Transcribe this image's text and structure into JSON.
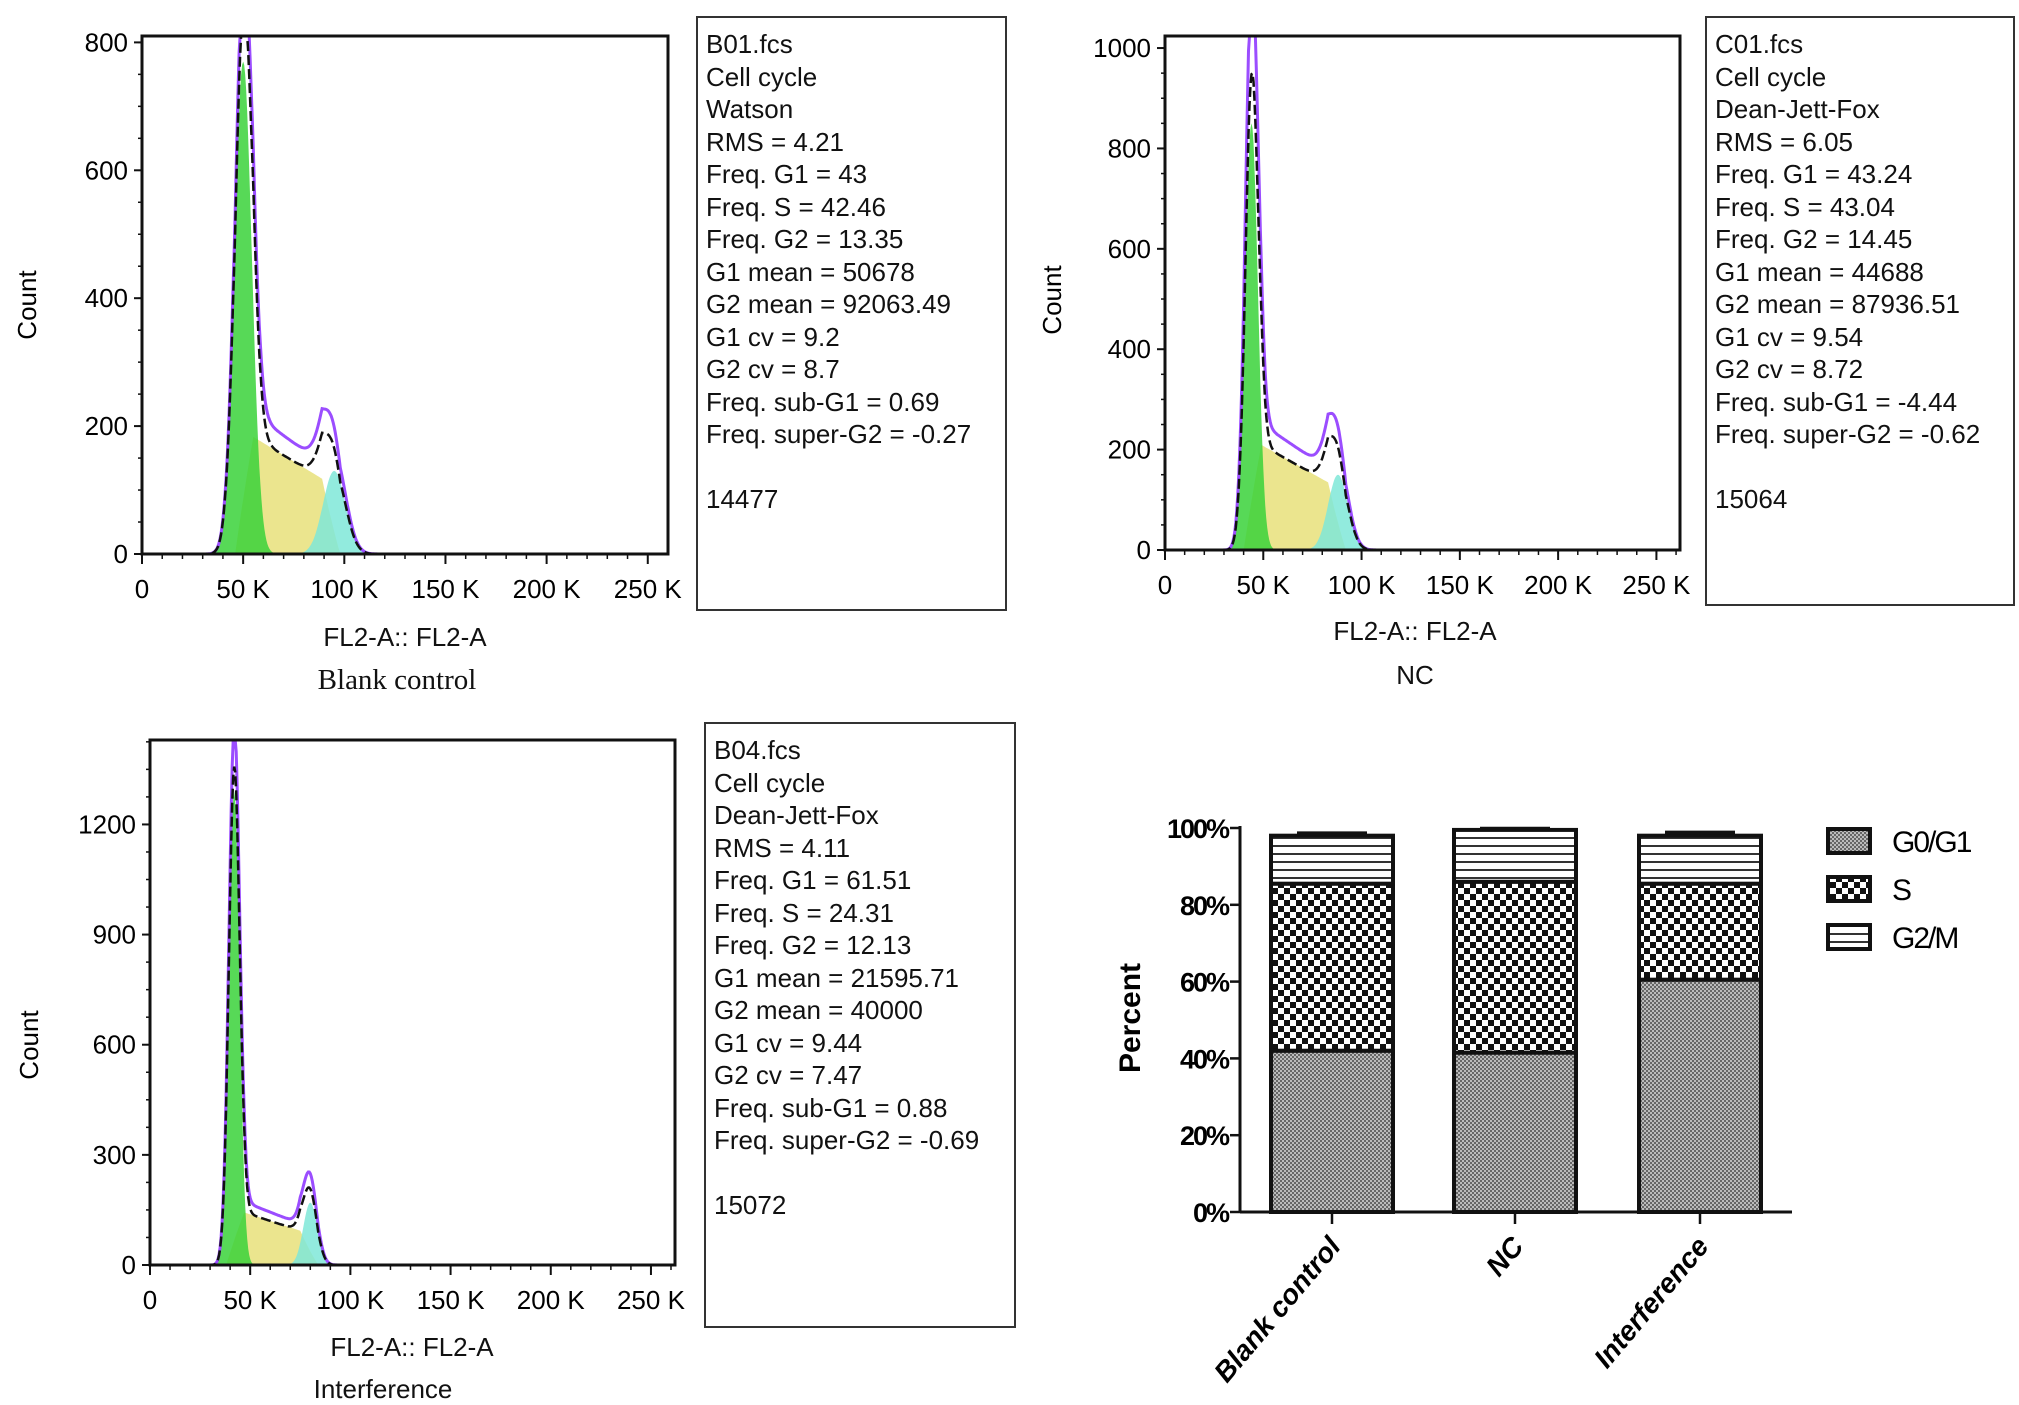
{
  "chart_data": [
    {
      "type": "area",
      "panel": "histogram",
      "title": "Blank control",
      "xlabel": "FL2-A:: FL2-A",
      "ylabel": "Count",
      "xlim": [
        0,
        260000
      ],
      "ylim": [
        0,
        810
      ],
      "xticks": [
        {
          "v": 0,
          "label": "0"
        },
        {
          "v": 50000,
          "label": "50 K"
        },
        {
          "v": 100000,
          "label": "100 K"
        },
        {
          "v": 150000,
          "label": "150 K"
        },
        {
          "v": 200000,
          "label": "200 K"
        },
        {
          "v": 250000,
          "label": "250 K"
        }
      ],
      "yticks": [
        {
          "v": 0,
          "label": "0"
        },
        {
          "v": 200,
          "label": "200"
        },
        {
          "v": 400,
          "label": "400"
        },
        {
          "v": 600,
          "label": "600"
        },
        {
          "v": 800,
          "label": "800"
        }
      ],
      "components": {
        "G1": {
          "peak_x": 50000,
          "peak_y": 770,
          "sd": 4300
        },
        "S": {
          "from_x": 52000,
          "to_x": 92000,
          "level": 140
        },
        "G2": {
          "peak_x": 95000,
          "peak_y": 130,
          "sd": 5500
        },
        "envelope_peak": 815
      },
      "info": [
        "B01.fcs",
        "Cell cycle",
        "Watson",
        "RMS = 4.21",
        "Freq. G1 = 43",
        "Freq. S = 42.46",
        "Freq. G2 = 13.35",
        "G1 mean = 50678",
        "G2 mean = 92063.49",
        "G1 cv = 9.2",
        "G2 cv = 8.7",
        "Freq. sub-G1 = 0.69",
        "Freq. super-G2 = -0.27"
      ],
      "event_count": "14477"
    },
    {
      "type": "area",
      "panel": "histogram",
      "title": "NC",
      "xlabel": "FL2-A:: FL2-A",
      "ylabel": "Count",
      "xlim": [
        0,
        262000
      ],
      "ylim": [
        0,
        1024
      ],
      "xticks": [
        {
          "v": 0,
          "label": "0"
        },
        {
          "v": 50000,
          "label": "50 K"
        },
        {
          "v": 100000,
          "label": "100 K"
        },
        {
          "v": 150000,
          "label": "150 K"
        },
        {
          "v": 200000,
          "label": "200 K"
        },
        {
          "v": 250000,
          "label": "250 K"
        }
      ],
      "yticks": [
        {
          "v": 0,
          "label": "0"
        },
        {
          "v": 200,
          "label": "200"
        },
        {
          "v": 400,
          "label": "400"
        },
        {
          "v": 600,
          "label": "600"
        },
        {
          "v": 800,
          "label": "800"
        },
        {
          "v": 1000,
          "label": "1000"
        }
      ],
      "components": {
        "G1": {
          "peak_x": 44000,
          "peak_y": 850,
          "sd": 3300
        },
        "S": {
          "from_x": 46000,
          "to_x": 86000,
          "level": 160
        },
        "G2": {
          "peak_x": 88000,
          "peak_y": 150,
          "sd": 5000
        },
        "envelope_peak": 1020
      },
      "info": [
        "C01.fcs",
        "Cell cycle",
        "Dean-Jett-Fox",
        "RMS = 6.05",
        "Freq. G1 = 43.24",
        "Freq. S = 43.04",
        "Freq. G2 = 14.45",
        "G1 mean = 44688",
        "G2 mean = 87936.51",
        "G1 cv = 9.54",
        "G2 cv = 8.72",
        "Freq. sub-G1 = -4.44",
        "Freq. super-G2 = -0.62"
      ],
      "event_count": "15064"
    },
    {
      "type": "area",
      "panel": "histogram",
      "title": "Interference",
      "xlabel": "FL2-A:: FL2-A",
      "ylabel": "Count",
      "xlim": [
        0,
        262000
      ],
      "ylim": [
        0,
        1430
      ],
      "xticks": [
        {
          "v": 0,
          "label": "0"
        },
        {
          "v": 50000,
          "label": "50 K"
        },
        {
          "v": 100000,
          "label": "100 K"
        },
        {
          "v": 150000,
          "label": "150 K"
        },
        {
          "v": 200000,
          "label": "200 K"
        },
        {
          "v": 250000,
          "label": "250 K"
        }
      ],
      "yticks": [
        {
          "v": 0,
          "label": "0"
        },
        {
          "v": 300,
          "label": "300"
        },
        {
          "v": 600,
          "label": "600"
        },
        {
          "v": 900,
          "label": "900"
        },
        {
          "v": 1200,
          "label": "1200"
        }
      ],
      "components": {
        "G1": {
          "peak_x": 42000,
          "peak_y": 1290,
          "sd": 2700
        },
        "S": {
          "from_x": 44000,
          "to_x": 78000,
          "level": 110
        },
        "G2": {
          "peak_x": 80000,
          "peak_y": 170,
          "sd": 3500
        },
        "envelope_peak": 1390
      },
      "info": [
        "B04.fcs",
        "Cell cycle",
        "Dean-Jett-Fox",
        "RMS = 4.11",
        "Freq. G1 = 61.51",
        "Freq. S = 24.31",
        "Freq. G2 = 12.13",
        "G1 mean = 21595.71",
        "G2 mean = 40000",
        "G1 cv = 9.44",
        "G2 cv = 7.47",
        "Freq. sub-G1 = 0.88",
        "Freq. super-G2 = -0.69"
      ],
      "event_count": "15072"
    },
    {
      "type": "bar",
      "stacked": true,
      "ylabel": "Percent",
      "ylim": [
        0,
        100
      ],
      "yticks": [
        "0%",
        "20%",
        "40%",
        "60%",
        "80%",
        "100%"
      ],
      "categories": [
        "Blank control",
        "NC",
        "Interference"
      ],
      "series": [
        {
          "name": "G0/G1",
          "values": [
            42.0,
            41.5,
            60.5
          ],
          "errors": [
            0.5,
            0.6,
            0.5
          ]
        },
        {
          "name": "S",
          "values": [
            43.5,
            44.5,
            25.0
          ],
          "errors": [
            0.4,
            0.5,
            0.4
          ]
        },
        {
          "name": "G2/M",
          "values": [
            12.5,
            13.5,
            12.5
          ],
          "errors": [
            0.6,
            0.3,
            0.8
          ]
        }
      ],
      "legend": "right"
    }
  ],
  "colors": {
    "g1": "#3ad23a",
    "s": "#e8e07a",
    "g2": "#7fe8d8",
    "envelope": "#9b4dff",
    "fit": "#111111"
  }
}
